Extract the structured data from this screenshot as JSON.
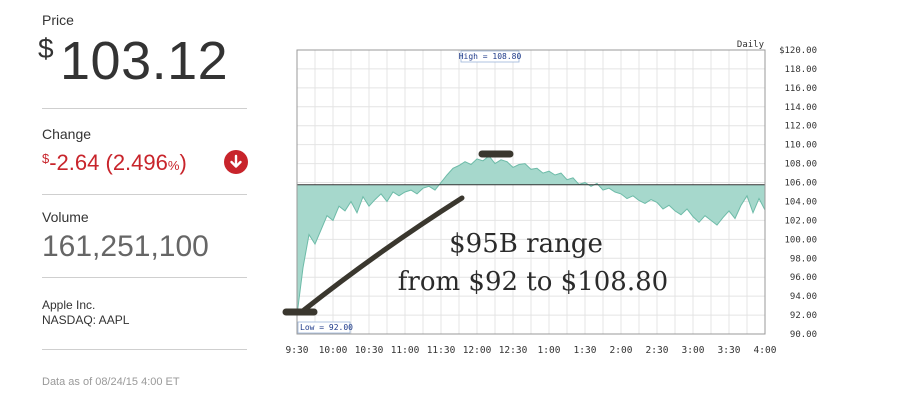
{
  "quote": {
    "price_label": "Price",
    "price_currency": "$",
    "price_value": "103.12",
    "change_label": "Change",
    "change_currency": "$",
    "change_value": "-2.64 (2.496",
    "change_pct_sign": "%",
    "change_close": ")",
    "change_icon": "arrow-down-circle-icon",
    "change_color": "#c8242b",
    "volume_label": "Volume",
    "volume_value": "161,251,100",
    "company_name": "Apple Inc.",
    "exchange_ticker": "NASDAQ: AAPL",
    "as_of": "Data as of 08/24/15 4:00 ET"
  },
  "chart_data": {
    "type": "area",
    "period_label": "Daily",
    "x_ticks": [
      "9:30",
      "10:00",
      "10:30",
      "11:00",
      "11:30",
      "12:00",
      "12:30",
      "1:00",
      "1:30",
      "2:00",
      "2:30",
      "3:00",
      "3:30",
      "4:00"
    ],
    "y_ticks": [
      "$120.00",
      "118.00",
      "116.00",
      "114.00",
      "112.00",
      "110.00",
      "108.00",
      "106.00",
      "104.00",
      "102.00",
      "100.00",
      "98.00",
      "96.00",
      "94.00",
      "92.00",
      "90.00"
    ],
    "ylim": [
      90,
      120
    ],
    "reference_line": 105.76,
    "high_label": "High = 108.80",
    "low_label": "Low = 92.00",
    "fill_color": "#a6d8cc",
    "line_color": "#6dbba8",
    "series": [
      {
        "x": [
          "9:30",
          "9:35",
          "9:40",
          "9:45",
          "9:50",
          "9:55",
          "10:00",
          "10:05",
          "10:10",
          "10:15",
          "10:20",
          "10:25",
          "10:30",
          "10:35",
          "10:40",
          "10:45",
          "10:50",
          "10:55",
          "11:00",
          "11:05",
          "11:10",
          "11:15",
          "11:20",
          "11:25",
          "11:30",
          "11:35",
          "11:40",
          "11:45",
          "11:50",
          "11:55",
          "12:00",
          "12:05",
          "12:10",
          "12:15",
          "12:20",
          "12:25",
          "12:30",
          "12:35",
          "12:40",
          "12:45",
          "12:50",
          "12:55",
          "1:00",
          "1:05",
          "1:10",
          "1:15",
          "1:20",
          "1:25",
          "1:30",
          "1:35",
          "1:40",
          "1:45",
          "1:50",
          "1:55",
          "2:00",
          "2:05",
          "2:10",
          "2:15",
          "2:20",
          "2:25",
          "2:30",
          "2:35",
          "2:40",
          "2:45",
          "2:50",
          "2:55",
          "3:00",
          "3:05",
          "3:10",
          "3:15",
          "3:20",
          "3:25",
          "3:30",
          "3:35",
          "3:40",
          "3:45",
          "3:50",
          "3:55",
          "4:00"
        ],
        "values": [
          92.0,
          97.0,
          100.5,
          99.5,
          101.0,
          102.5,
          102.0,
          103.5,
          103.0,
          104.0,
          102.8,
          104.5,
          103.5,
          104.2,
          104.8,
          104.0,
          105.0,
          104.6,
          105.0,
          105.2,
          104.8,
          105.4,
          105.6,
          105.2,
          106.0,
          106.8,
          107.5,
          107.8,
          108.2,
          107.9,
          108.5,
          108.3,
          108.8,
          108.0,
          108.4,
          108.2,
          107.6,
          107.9,
          108.0,
          107.4,
          107.5,
          107.0,
          107.2,
          106.8,
          107.0,
          106.3,
          106.5,
          105.8,
          106.0,
          105.6,
          105.9,
          105.2,
          105.4,
          105.0,
          104.8,
          104.3,
          104.6,
          104.1,
          103.8,
          104.2,
          103.9,
          103.2,
          103.6,
          103.0,
          102.6,
          103.2,
          102.4,
          101.8,
          102.5,
          102.0,
          101.5,
          102.3,
          103.0,
          102.2,
          103.6,
          104.6,
          102.8,
          104.3,
          103.1
        ]
      }
    ],
    "annotation_line1": "$95B range",
    "annotation_line2": "from $92 to $108.80"
  }
}
